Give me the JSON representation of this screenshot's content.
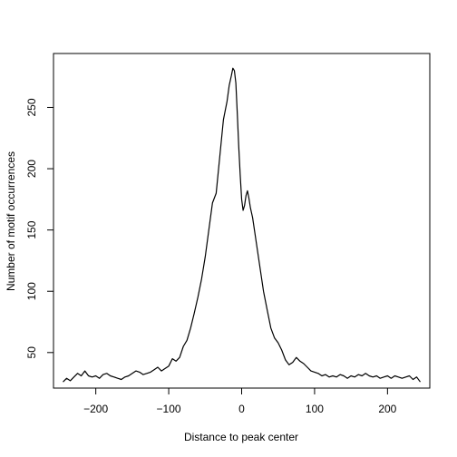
{
  "chart_data": {
    "type": "line",
    "title": "",
    "xlabel": "Distance to peak center",
    "ylabel": "Number of motif occurrences",
    "xlim": [
      -258,
      258
    ],
    "ylim": [
      21,
      294
    ],
    "xticks": [
      -200,
      -100,
      0,
      100,
      200
    ],
    "yticks": [
      50,
      100,
      150,
      200,
      250
    ],
    "xtick_labels": [
      "−200",
      "−100",
      "0",
      "100",
      "200"
    ],
    "ytick_labels": [
      "50",
      "100",
      "150",
      "200",
      "250"
    ],
    "grid": false,
    "line_color": "#000000",
    "series": [
      {
        "x": [
          -245,
          -240,
          -235,
          -230,
          -225,
          -220,
          -215,
          -210,
          -205,
          -200,
          -195,
          -190,
          -185,
          -180,
          -175,
          -170,
          -165,
          -160,
          -155,
          -150,
          -145,
          -140,
          -135,
          -130,
          -125,
          -120,
          -115,
          -110,
          -105,
          -100,
          -95,
          -90,
          -85,
          -80,
          -75,
          -70,
          -65,
          -60,
          -55,
          -50,
          -45,
          -40,
          -35,
          -30,
          -25,
          -20,
          -17,
          -14,
          -12,
          -10,
          -8,
          -6,
          -4,
          -2,
          0,
          2,
          4,
          6,
          8,
          10,
          12,
          15,
          20,
          25,
          30,
          35,
          40,
          45,
          50,
          55,
          60,
          65,
          70,
          75,
          80,
          85,
          90,
          95,
          100,
          105,
          110,
          115,
          120,
          125,
          130,
          135,
          140,
          145,
          150,
          155,
          160,
          165,
          170,
          175,
          180,
          185,
          190,
          195,
          200,
          205,
          210,
          215,
          220,
          225,
          230,
          235,
          240,
          245
        ],
        "y": [
          26,
          29,
          27,
          30,
          33,
          31,
          35,
          31,
          30,
          31,
          29,
          32,
          33,
          31,
          30,
          29,
          28,
          30,
          31,
          33,
          35,
          34,
          32,
          33,
          34,
          36,
          38,
          35,
          37,
          39,
          45,
          43,
          46,
          55,
          60,
          70,
          82,
          95,
          110,
          128,
          150,
          172,
          180,
          210,
          240,
          255,
          268,
          276,
          282,
          280,
          270,
          245,
          218,
          195,
          175,
          166,
          170,
          178,
          182,
          176,
          168,
          160,
          140,
          120,
          100,
          85,
          70,
          62,
          58,
          52,
          44,
          40,
          42,
          46,
          43,
          41,
          38,
          35,
          34,
          33,
          31,
          32,
          30,
          31,
          30,
          32,
          31,
          29,
          31,
          30,
          32,
          31,
          33,
          31,
          30,
          31,
          29,
          30,
          31,
          29,
          31,
          30,
          29,
          30,
          31,
          28,
          30,
          26
        ]
      }
    ]
  }
}
